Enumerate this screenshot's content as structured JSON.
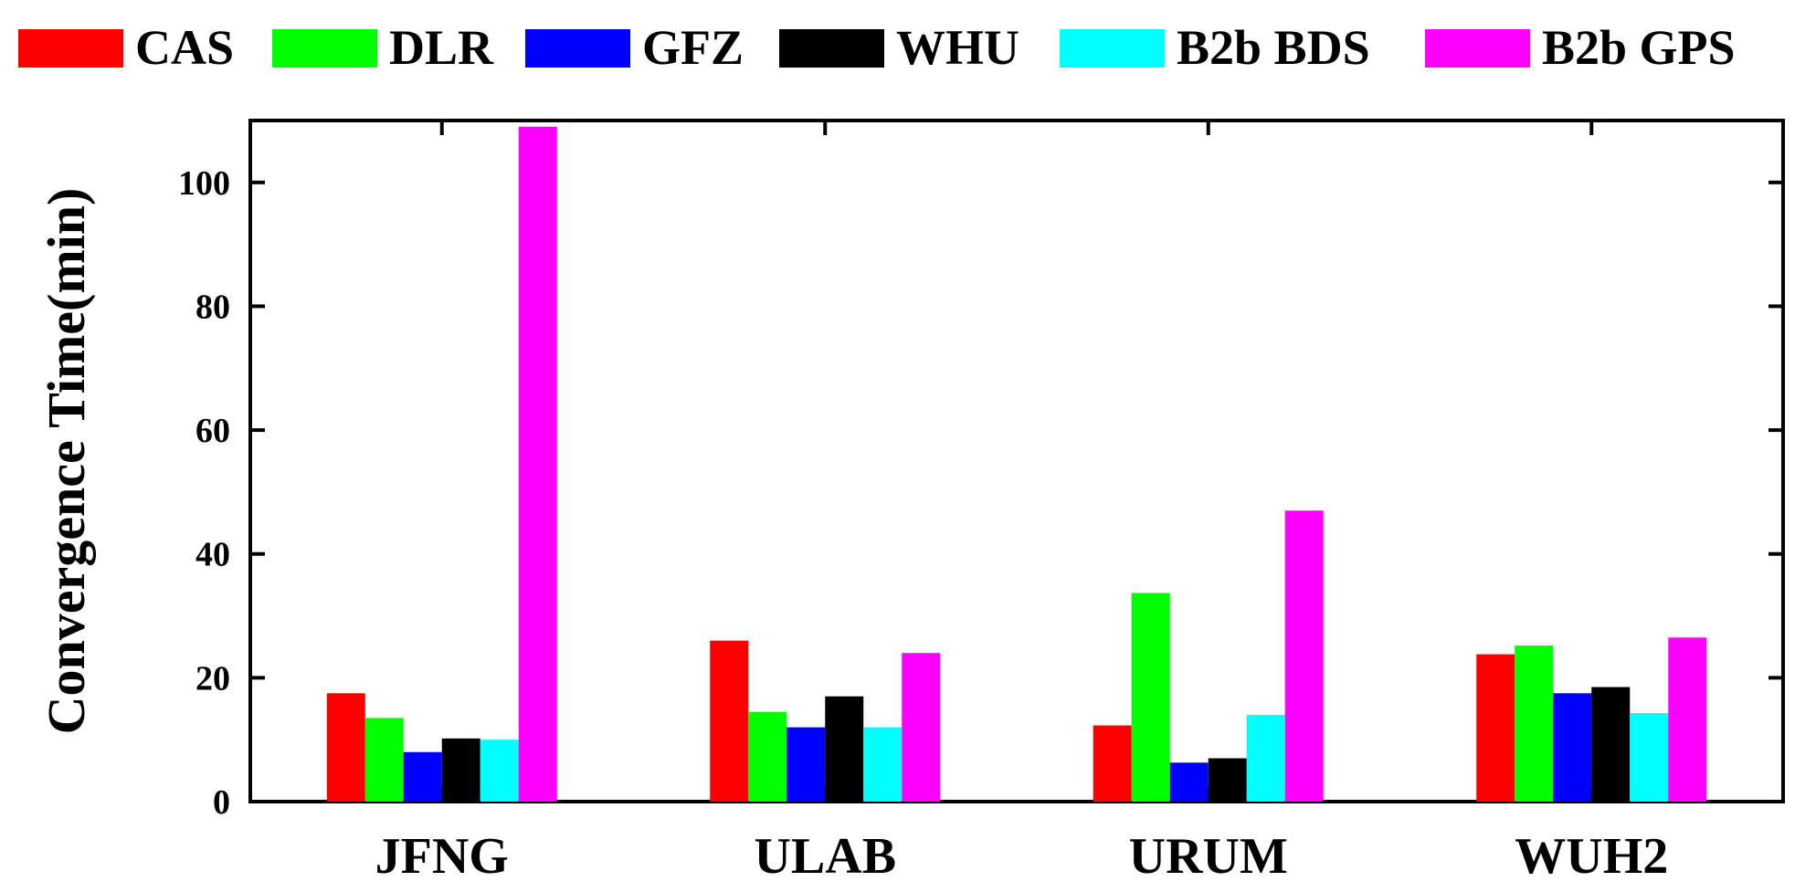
{
  "chart_data": {
    "type": "bar",
    "title": "",
    "xlabel": "",
    "ylabel": "Convergence Time(min)",
    "ylim": [
      0,
      110
    ],
    "yticks": [
      0,
      20,
      40,
      60,
      80,
      100
    ],
    "grid": false,
    "legend_position": "top",
    "categories": [
      "JFNG",
      "ULAB",
      "URUM",
      "WUH2"
    ],
    "series": [
      {
        "name": "CAS",
        "color": "#ff0000",
        "values": [
          17.5,
          26.0,
          12.3,
          23.8
        ]
      },
      {
        "name": "DLR",
        "color": "#00ff00",
        "values": [
          13.5,
          14.5,
          33.7,
          25.2
        ]
      },
      {
        "name": "GFZ",
        "color": "#0000ff",
        "values": [
          8.0,
          12.0,
          6.3,
          17.5
        ]
      },
      {
        "name": "WHU",
        "color": "#000000",
        "values": [
          10.2,
          17.0,
          7.0,
          18.5
        ]
      },
      {
        "name": "B2b BDS",
        "color": "#00ffff",
        "values": [
          10.0,
          12.0,
          14.0,
          14.3
        ]
      },
      {
        "name": "B2b GPS",
        "color": "#ff00ff",
        "values": [
          109.0,
          24.0,
          47.0,
          26.5
        ]
      }
    ]
  }
}
